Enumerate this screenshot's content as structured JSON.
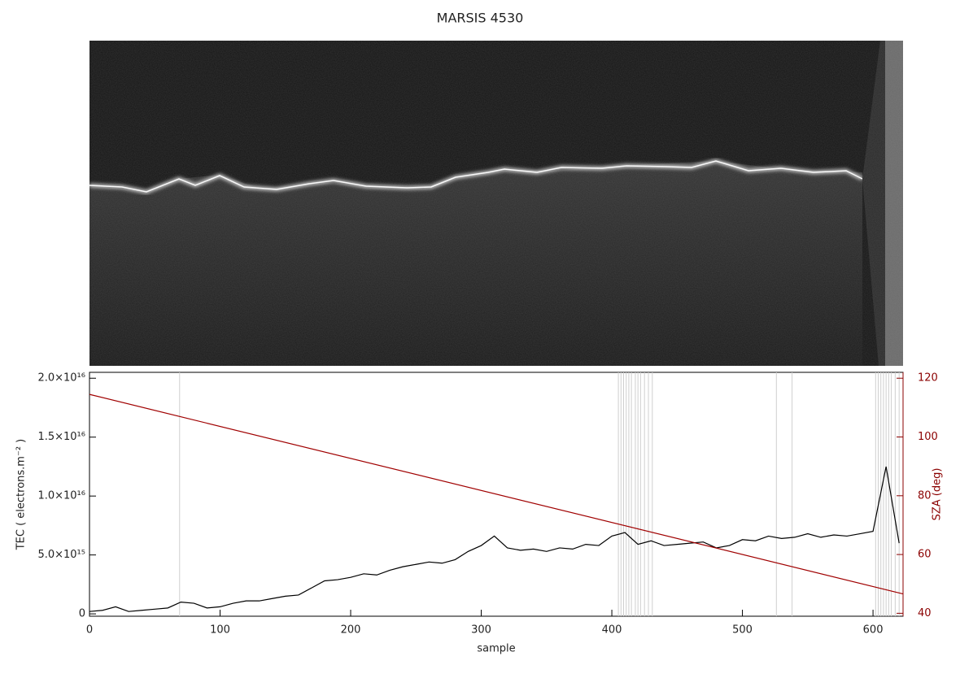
{
  "chart_data": {
    "type": "line",
    "title": "MARSIS 4530",
    "xlabel": "sample",
    "ylabel": "TEC ( electrons.m⁻² )",
    "y2label": "SZA (deg)",
    "xlim": [
      0,
      623
    ],
    "xticks": [
      0,
      100,
      200,
      300,
      400,
      500,
      600
    ],
    "ylim": [
      -200000000000000.0,
      2.05e+16
    ],
    "yticks": [
      0,
      {
        "value": 5000000000000000.0,
        "label": "5.0×10¹⁵"
      },
      {
        "value": 1e+16,
        "label": "1.0×10¹⁶"
      },
      {
        "value": 1.5e+16,
        "label": "1.5×10¹⁶"
      },
      {
        "value": 2e+16,
        "label": "2.0×10¹⁶"
      }
    ],
    "y2lim": [
      39,
      122
    ],
    "y2ticks": [
      40,
      60,
      80,
      100,
      120
    ],
    "y2color": "#8b0000",
    "vlines": [
      69,
      405,
      407,
      409,
      411,
      413,
      415,
      418,
      420,
      422,
      425,
      428,
      431,
      526,
      538,
      602,
      604,
      606,
      608,
      610,
      612,
      614,
      617,
      620
    ],
    "x": [
      0,
      10,
      20,
      30,
      40,
      50,
      60,
      70,
      80,
      90,
      100,
      110,
      120,
      130,
      140,
      150,
      160,
      170,
      180,
      190,
      200,
      210,
      220,
      230,
      240,
      250,
      260,
      270,
      280,
      290,
      300,
      310,
      320,
      330,
      340,
      350,
      360,
      370,
      380,
      390,
      400,
      410,
      420,
      430,
      440,
      450,
      460,
      470,
      480,
      490,
      500,
      510,
      520,
      530,
      540,
      550,
      560,
      570,
      580,
      590,
      600,
      610,
      620
    ],
    "series": [
      {
        "color": "#000000",
        "values": [
          200000000000000.0,
          300000000000000.0,
          600000000000000.0,
          200000000000000.0,
          300000000000000.0,
          400000000000000.0,
          500000000000000.0,
          1000000000000000.0,
          900000000000000.0,
          500000000000000.0,
          600000000000000.0,
          900000000000000.0,
          1100000000000000.0,
          1100000000000000.0,
          1300000000000000.0,
          1500000000000000.0,
          1600000000000000.0,
          2200000000000000.0,
          2800000000000000.0,
          2900000000000000.0,
          3100000000000000.0,
          3400000000000000.0,
          3300000000000000.0,
          3700000000000000.0,
          4000000000000000.0,
          4200000000000000.0,
          4400000000000000.0,
          4300000000000000.0,
          4600000000000000.0,
          5300000000000000.0,
          5800000000000000.0,
          6600000000000000.0,
          5600000000000000.0,
          5400000000000000.0,
          5500000000000000.0,
          5300000000000000.0,
          5600000000000000.0,
          5500000000000000.0,
          5900000000000000.0,
          5800000000000000.0,
          6600000000000000.0,
          6900000000000000.0,
          5900000000000000.0,
          6200000000000000.0,
          5800000000000000.0,
          5900000000000000.0,
          6000000000000000.0,
          6100000000000000.0,
          5600000000000000.0,
          5800000000000000.0,
          6300000000000000.0,
          6200000000000000.0,
          6600000000000000.0,
          6400000000000000.0,
          6500000000000000.0,
          6800000000000000.0,
          6500000000000000.0,
          6700000000000000.0,
          6600000000000000.0,
          6800000000000000.0,
          7000000000000000.0,
          1.25e+16,
          6000000000000000.0
        ]
      },
      {
        "color": "#a00000",
        "axis": "y2",
        "x": [
          0,
          623
        ],
        "values": [
          114.5,
          46.6
        ]
      }
    ]
  }
}
